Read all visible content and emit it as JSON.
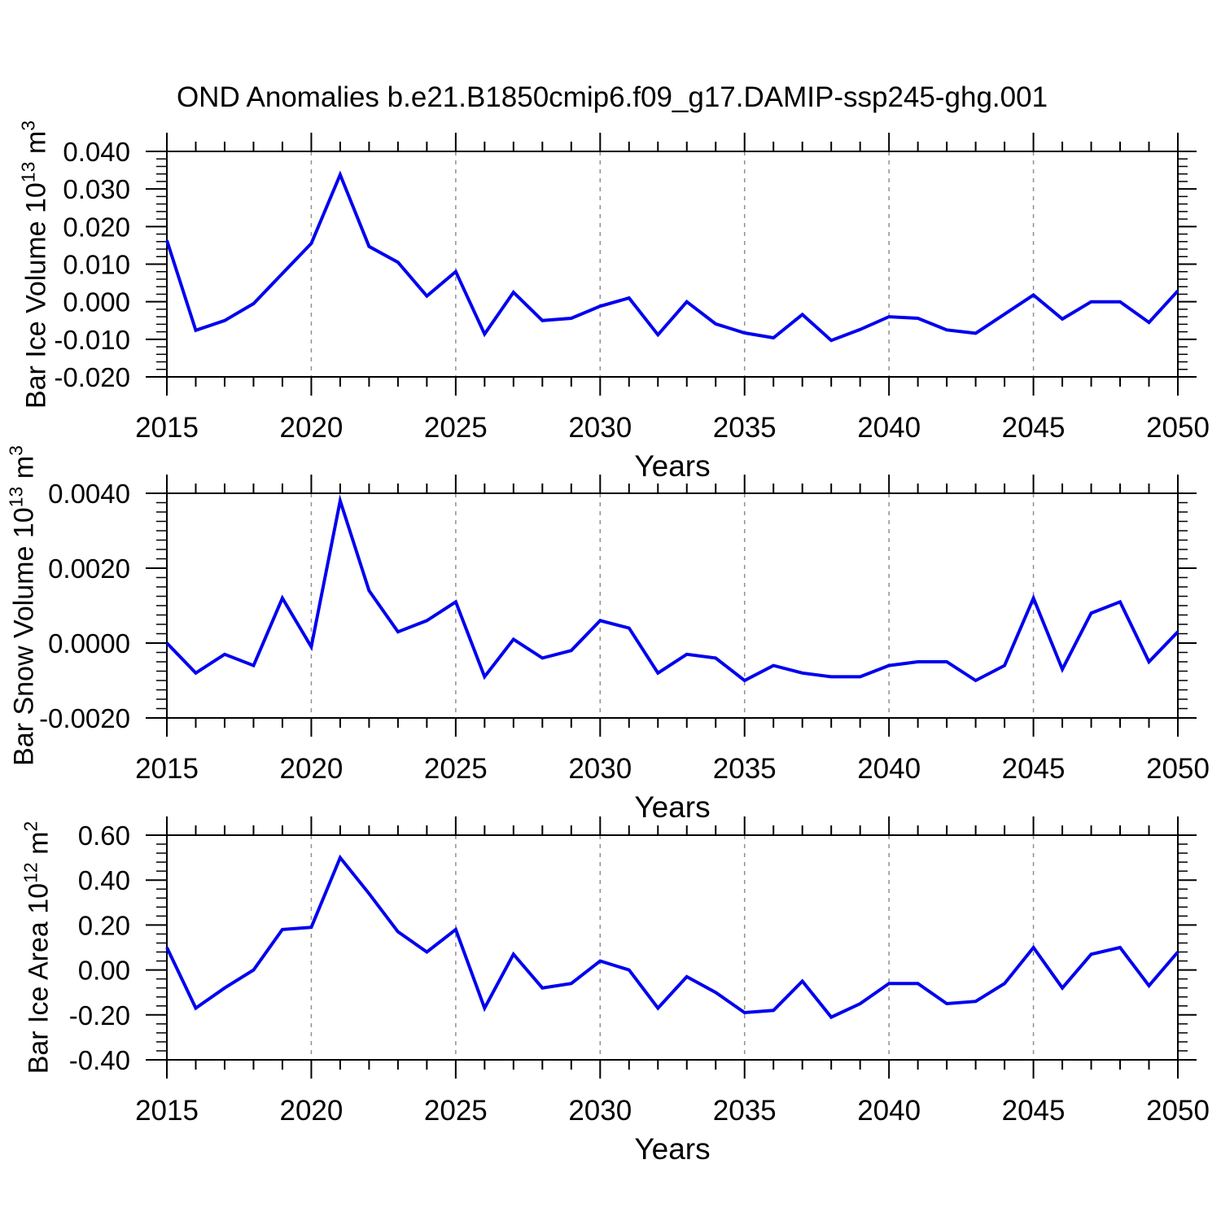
{
  "title": "OND Anomalies b.e21.B1850cmip6.f09_g17.DAMIP-ssp245-ghg.001",
  "colors": {
    "line": "#0000ee",
    "grid": "#909090",
    "frame": "#000000"
  },
  "x_axis": {
    "xlim": [
      2015,
      2050
    ],
    "minor_step": 1,
    "major_step": 5
  },
  "chart_data": [
    {
      "type": "line",
      "ylabel": "Bar Ice Volume 10",
      "ylabel_exp": "13",
      "ylabel_unit": "m",
      "ylabel_unit_exp": "3",
      "xlabel": "Years",
      "x": [
        2015,
        2016,
        2017,
        2018,
        2019,
        2020,
        2021,
        2022,
        2023,
        2024,
        2025,
        2026,
        2027,
        2028,
        2029,
        2030,
        2031,
        2032,
        2033,
        2034,
        2035,
        2036,
        2037,
        2038,
        2039,
        2040,
        2041,
        2042,
        2043,
        2044,
        2045,
        2046,
        2047,
        2048,
        2049,
        2050
      ],
      "values": [
        0.0163,
        -0.0076,
        -0.005,
        -0.0005,
        0.0075,
        0.0155,
        0.0338,
        0.0147,
        0.0105,
        0.0015,
        0.008,
        -0.0086,
        0.0025,
        -0.005,
        -0.0044,
        -0.0012,
        0.001,
        -0.0088,
        0.0,
        -0.0059,
        -0.0083,
        -0.0096,
        -0.0034,
        -0.0103,
        -0.0074,
        -0.004,
        -0.0044,
        -0.0075,
        -0.0084,
        -0.0033,
        0.0018,
        -0.0046,
        0.0,
        0.0,
        -0.0055,
        0.0029
      ],
      "ylim": [
        -0.02,
        0.04
      ],
      "yticks": [
        0.04,
        0.03,
        0.02,
        0.01,
        0.0,
        -0.01,
        -0.02
      ],
      "ytick_labels": [
        "0.040",
        "0.030",
        "0.020",
        "0.010",
        "0.000",
        "-0.010",
        "-0.020"
      ],
      "y_minor_divisions": 5,
      "xtick_labels": [
        "2015",
        "2020",
        "2025",
        "2030",
        "2035",
        "2040",
        "2045",
        "2050"
      ],
      "grid_years": [
        2020,
        2025,
        2030,
        2035,
        2040,
        2045
      ],
      "grid_on": true,
      "legend": "none"
    },
    {
      "type": "line",
      "ylabel": "Bar Snow Volume 10",
      "ylabel_exp": "13",
      "ylabel_unit": "m",
      "ylabel_unit_exp": "3",
      "xlabel": "Years",
      "x": [
        2015,
        2016,
        2017,
        2018,
        2019,
        2020,
        2021,
        2022,
        2023,
        2024,
        2025,
        2026,
        2027,
        2028,
        2029,
        2030,
        2031,
        2032,
        2033,
        2034,
        2035,
        2036,
        2037,
        2038,
        2039,
        2040,
        2041,
        2042,
        2043,
        2044,
        2045,
        2046,
        2047,
        2048,
        2049,
        2050
      ],
      "values": [
        0.0,
        -0.0008,
        -0.0003,
        -0.0006,
        0.0012,
        -0.0001,
        0.0038,
        0.0014,
        0.0003,
        0.0006,
        0.0011,
        -0.0009,
        0.0001,
        -0.0004,
        -0.0002,
        0.0006,
        0.0004,
        -0.0008,
        -0.0003,
        -0.0004,
        -0.001,
        -0.0006,
        -0.0008,
        -0.0009,
        -0.0009,
        -0.0006,
        -0.0005,
        -0.0005,
        -0.001,
        -0.0006,
        0.0012,
        -0.0007,
        0.0008,
        0.0011,
        -0.0005,
        0.0003
      ],
      "ylim": [
        -0.002,
        0.004
      ],
      "yticks": [
        0.004,
        0.002,
        0.0,
        -0.002
      ],
      "ytick_labels": [
        "0.0040",
        "0.0020",
        "0.0000",
        "-0.0020"
      ],
      "y_minor_divisions": 8,
      "xtick_labels": [
        "2015",
        "2020",
        "2025",
        "2030",
        "2035",
        "2040",
        "2045",
        "2050"
      ],
      "grid_years": [
        2020,
        2025,
        2030,
        2035,
        2040,
        2045
      ],
      "grid_on": true,
      "legend": "none"
    },
    {
      "type": "line",
      "ylabel": "Bar Ice Area 10",
      "ylabel_exp": "12",
      "ylabel_unit": "m",
      "ylabel_unit_exp": "2",
      "xlabel": "Years",
      "x": [
        2015,
        2016,
        2017,
        2018,
        2019,
        2020,
        2021,
        2022,
        2023,
        2024,
        2025,
        2026,
        2027,
        2028,
        2029,
        2030,
        2031,
        2032,
        2033,
        2034,
        2035,
        2036,
        2037,
        2038,
        2039,
        2040,
        2041,
        2042,
        2043,
        2044,
        2045,
        2046,
        2047,
        2048,
        2049,
        2050
      ],
      "values": [
        0.1,
        -0.17,
        -0.08,
        0.0,
        0.18,
        0.19,
        0.5,
        0.34,
        0.17,
        0.08,
        0.18,
        -0.17,
        0.07,
        -0.08,
        -0.06,
        0.04,
        0.0,
        -0.17,
        -0.03,
        -0.1,
        -0.19,
        -0.18,
        -0.05,
        -0.21,
        -0.15,
        -0.06,
        -0.06,
        -0.15,
        -0.14,
        -0.06,
        0.1,
        -0.08,
        0.07,
        0.1,
        -0.07,
        0.08
      ],
      "ylim": [
        -0.4,
        0.6
      ],
      "yticks": [
        0.6,
        0.4,
        0.2,
        0.0,
        -0.2,
        -0.4
      ],
      "ytick_labels": [
        "0.60",
        "0.40",
        "0.20",
        "0.00",
        "-0.20",
        "-0.40"
      ],
      "y_minor_divisions": 5,
      "xtick_labels": [
        "2015",
        "2020",
        "2025",
        "2030",
        "2035",
        "2040",
        "2045",
        "2050"
      ],
      "grid_years": [
        2020,
        2025,
        2030,
        2035,
        2040,
        2045
      ],
      "grid_on": true,
      "legend": "none"
    }
  ]
}
